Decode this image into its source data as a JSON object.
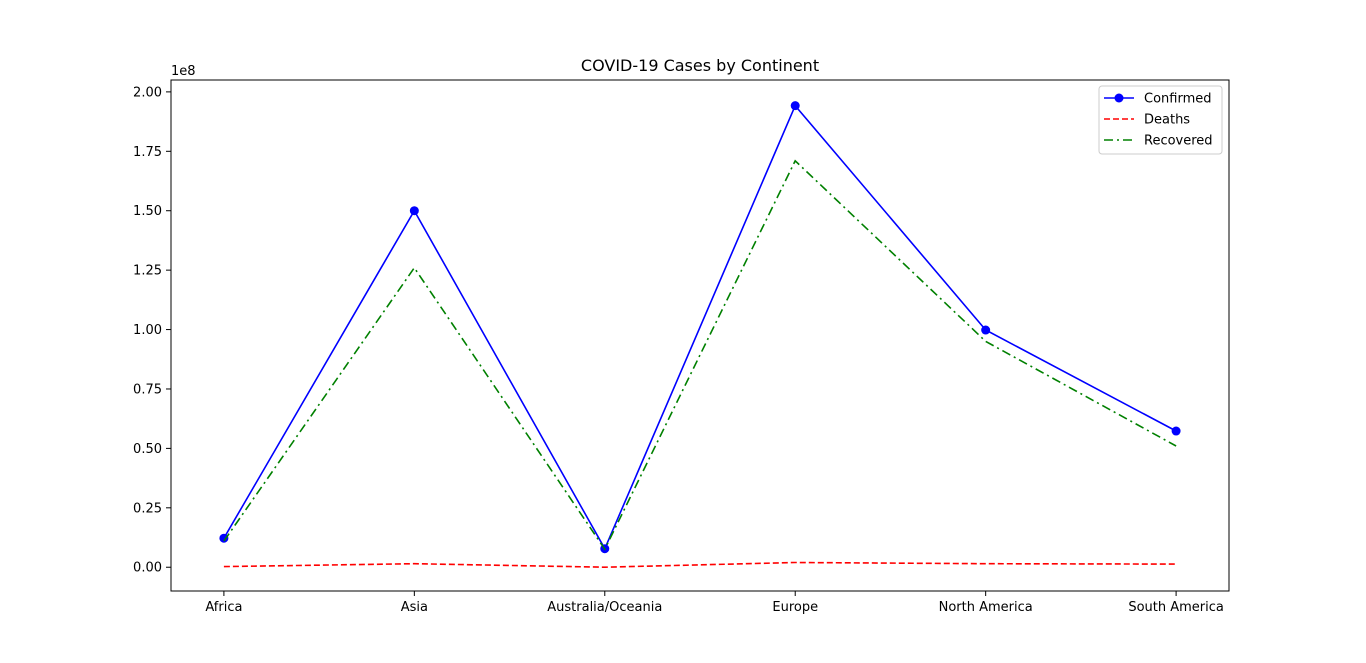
{
  "chart_data": {
    "type": "line",
    "title": "COVID-19 Cases by Continent",
    "xlabel": "",
    "ylabel": "",
    "offset_label": "1e8",
    "categories": [
      "Africa",
      "Asia",
      "Australia/Oceania",
      "Europe",
      "North America",
      "South America"
    ],
    "y_scale": 100000000,
    "ylim": [
      -10000000,
      205000000
    ],
    "yticks": [
      0,
      25000000,
      50000000,
      75000000,
      100000000,
      125000000,
      150000000,
      175000000,
      200000000
    ],
    "ytick_labels": [
      "0.00",
      "0.25",
      "0.50",
      "0.75",
      "1.00",
      "1.25",
      "1.50",
      "1.75",
      "2.00"
    ],
    "grid": false,
    "legend_position": "top-right",
    "series": [
      {
        "name": "Confirmed",
        "color": "#0000ff",
        "style": "solid",
        "marker": "circle",
        "values": [
          12200000,
          150000000,
          7800000,
          194200000,
          99800000,
          57300000
        ]
      },
      {
        "name": "Deaths",
        "color": "#ff0000",
        "style": "dashed",
        "marker": "none",
        "values": [
          250000,
          1500000,
          30000,
          2000000,
          1500000,
          1300000
        ]
      },
      {
        "name": "Recovered",
        "color": "#008000",
        "style": "dashdot",
        "marker": "none",
        "values": [
          11000000,
          126000000,
          7600000,
          171000000,
          95000000,
          51000000
        ]
      }
    ]
  }
}
